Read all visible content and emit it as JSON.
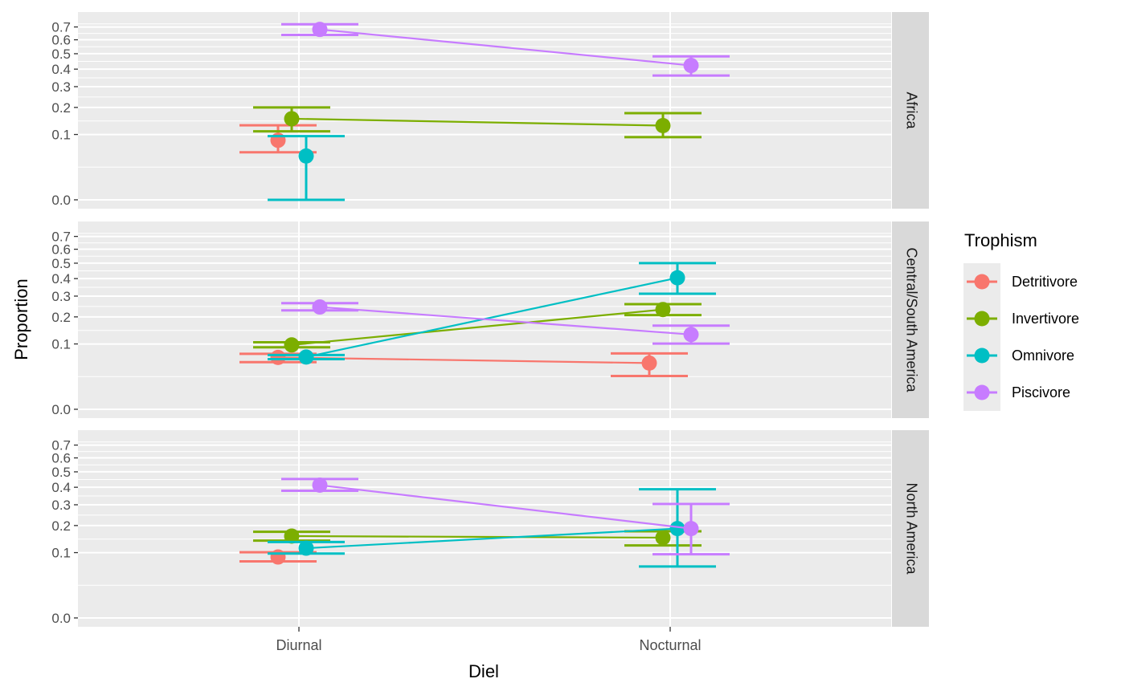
{
  "chart_data": {
    "type": "line",
    "subtype": "faceted point-range with error bars",
    "xlabel": "Diel",
    "ylabel": "Proportion",
    "categories": [
      "Diurnal",
      "Nocturnal"
    ],
    "y_scale": "sqrt",
    "ylim": [
      0,
      0.75
    ],
    "y_ticks": [
      0.0,
      0.1,
      0.2,
      0.3,
      0.4,
      0.5,
      0.6,
      0.7
    ],
    "y_tick_labels": [
      "0.0",
      "0.1",
      "0.2",
      "0.3",
      "0.4",
      "0.5",
      "0.6",
      "0.7"
    ],
    "grid": true,
    "legend": {
      "title": "Trophism",
      "position": "right",
      "entries": [
        {
          "name": "Detritivore",
          "color": "#F8766D"
        },
        {
          "name": "Invertivore",
          "color": "#7CAE00"
        },
        {
          "name": "Omnivore",
          "color": "#00BFC4"
        },
        {
          "name": "Piscivore",
          "color": "#C77CFF"
        }
      ]
    },
    "facets": [
      {
        "label": "Africa",
        "series": [
          {
            "name": "Detritivore",
            "values": [
              0.083,
              null
            ],
            "lower": [
              0.053,
              null
            ],
            "upper": [
              0.13,
              null
            ]
          },
          {
            "name": "Invertivore",
            "values": [
              0.154,
              0.129
            ],
            "lower": [
              0.11,
              0.092
            ],
            "upper": [
              0.2,
              0.176
            ]
          },
          {
            "name": "Omnivore",
            "values": [
              0.045,
              null
            ],
            "lower": [
              0.0,
              null
            ],
            "upper": [
              0.095,
              null
            ]
          },
          {
            "name": "Piscivore",
            "values": [
              0.68,
              0.423
            ],
            "lower": [
              0.637,
              0.362
            ],
            "upper": [
              0.722,
              0.482
            ]
          }
        ]
      },
      {
        "label": "Central/South America",
        "series": [
          {
            "name": "Detritivore",
            "values": [
              0.063,
              0.05
            ],
            "lower": [
              0.052,
              0.026
            ],
            "upper": [
              0.072,
              0.073
            ]
          },
          {
            "name": "Invertivore",
            "values": [
              0.097,
              0.233
            ],
            "lower": [
              0.09,
              0.208
            ],
            "upper": [
              0.105,
              0.259
            ]
          },
          {
            "name": "Omnivore",
            "values": [
              0.064,
              0.405
            ],
            "lower": [
              0.059,
              0.313
            ],
            "upper": [
              0.069,
              0.5
            ]
          },
          {
            "name": "Piscivore",
            "values": [
              0.245,
              0.131
            ],
            "lower": [
              0.229,
              0.101
            ],
            "upper": [
              0.264,
              0.164
            ]
          }
        ]
      },
      {
        "label": "North America",
        "series": [
          {
            "name": "Detritivore",
            "values": [
              0.087,
              null
            ],
            "lower": [
              0.075,
              null
            ],
            "upper": [
              0.101,
              null
            ]
          },
          {
            "name": "Invertivore",
            "values": [
              0.157,
              0.151
            ],
            "lower": [
              0.14,
              0.123
            ],
            "upper": [
              0.174,
              0.176
            ]
          },
          {
            "name": "Omnivore",
            "values": [
              0.114,
              0.187
            ],
            "lower": [
              0.097,
              0.062
            ],
            "upper": [
              0.135,
              0.388
            ]
          },
          {
            "name": "Piscivore",
            "values": [
              0.413,
              0.187
            ],
            "lower": [
              0.379,
              0.095
            ],
            "upper": [
              0.452,
              0.304
            ]
          }
        ]
      }
    ]
  }
}
